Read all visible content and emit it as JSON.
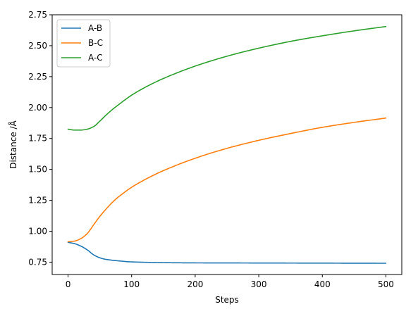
{
  "chart_data": {
    "type": "line",
    "title": "",
    "xlabel": "Steps",
    "ylabel": "Distance /Å",
    "xlim": [
      -25,
      525
    ],
    "ylim": [
      0.65,
      2.75
    ],
    "xticks": [
      0,
      100,
      200,
      300,
      400,
      500
    ],
    "xtick_labels": [
      "0",
      "100",
      "200",
      "300",
      "400",
      "500"
    ],
    "yticks": [
      0.75,
      1.0,
      1.25,
      1.5,
      1.75,
      2.0,
      2.25,
      2.5,
      2.75
    ],
    "ytick_labels": [
      "0.75",
      "1.00",
      "1.25",
      "1.50",
      "1.75",
      "2.00",
      "2.25",
      "2.50",
      "2.75"
    ],
    "grid": false,
    "legend_position": "top-left",
    "series": [
      {
        "name": "A-B",
        "color": "#1f77b4",
        "x": [
          0,
          10,
          20,
          30,
          40,
          50,
          60,
          80,
          100,
          150,
          200,
          300,
          400,
          500
        ],
        "y": [
          0.91,
          0.9,
          0.88,
          0.85,
          0.81,
          0.785,
          0.772,
          0.76,
          0.752,
          0.746,
          0.744,
          0.743,
          0.742,
          0.741
        ]
      },
      {
        "name": "B-C",
        "color": "#ff7f0e",
        "x": [
          0,
          10,
          20,
          30,
          40,
          50,
          60,
          70,
          80,
          100,
          120,
          150,
          200,
          250,
          300,
          350,
          400,
          450,
          500
        ],
        "y": [
          0.915,
          0.92,
          0.94,
          0.98,
          1.05,
          1.12,
          1.18,
          1.235,
          1.28,
          1.355,
          1.415,
          1.49,
          1.59,
          1.67,
          1.735,
          1.79,
          1.84,
          1.88,
          1.915
        ]
      },
      {
        "name": "A-C",
        "color": "#2ca02c",
        "x": [
          0,
          10,
          20,
          30,
          40,
          50,
          60,
          70,
          80,
          100,
          120,
          150,
          200,
          250,
          300,
          350,
          400,
          450,
          500
        ],
        "y": [
          1.825,
          1.818,
          1.818,
          1.825,
          1.845,
          1.89,
          1.94,
          1.985,
          2.025,
          2.1,
          2.16,
          2.235,
          2.335,
          2.415,
          2.48,
          2.535,
          2.58,
          2.62,
          2.655
        ]
      }
    ]
  }
}
